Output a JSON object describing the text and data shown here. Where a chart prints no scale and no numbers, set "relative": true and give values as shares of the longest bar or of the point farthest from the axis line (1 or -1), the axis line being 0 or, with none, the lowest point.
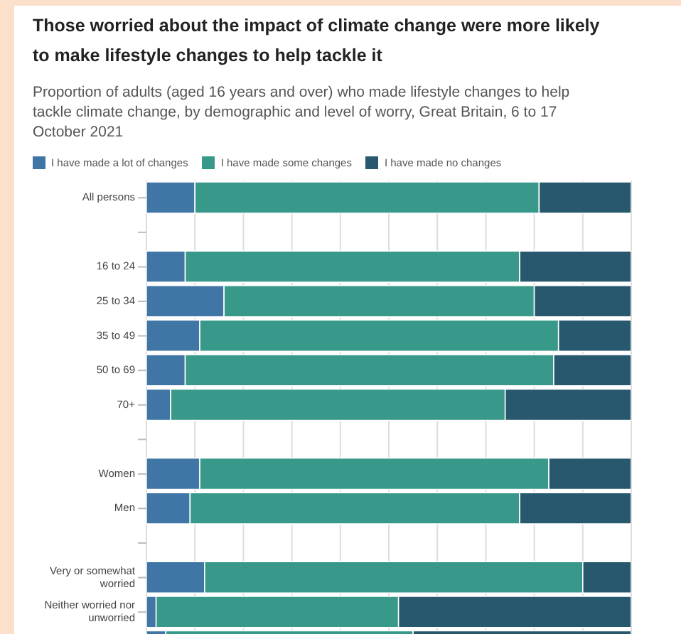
{
  "chart_data": {
    "type": "bar",
    "orientation": "horizontal",
    "stacked": true,
    "relative": true,
    "grid": "x",
    "legend": "top left",
    "title": "Those worried about the impact of climate change were more likely to make lifestyle changes to help tackle it",
    "subtitle": "Proportion of adults (aged 16 years and over) who made lifestyle changes to help tackle climate change, by demographic and level of worry, Great Britain, 6 to 17 October 2021",
    "categories": [
      "All persons",
      null,
      "16 to 24",
      "25 to 34",
      "35 to 49",
      "50 to 69",
      "70+",
      null,
      "Women",
      "Men",
      null,
      "Very or somewhat worried",
      "Neither worried nor unworried",
      null
    ],
    "series": [
      {
        "name": "I have made a lot of changes",
        "color": "#3f76a5",
        "values": [
          0.1,
          null,
          0.08,
          0.16,
          0.11,
          0.08,
          0.05,
          null,
          0.11,
          0.09,
          null,
          0.12,
          0.02,
          0.04
        ]
      },
      {
        "name": "I have made some changes",
        "color": "#38998a",
        "values": [
          0.71,
          null,
          0.69,
          0.64,
          0.74,
          0.76,
          0.69,
          null,
          0.72,
          0.68,
          null,
          0.78,
          0.5,
          0.51
        ]
      },
      {
        "name": "I have made no changes",
        "color": "#27586e",
        "values": [
          0.19,
          null,
          0.23,
          0.2,
          0.15,
          0.16,
          0.26,
          null,
          0.17,
          0.23,
          null,
          0.1,
          0.48,
          0.45
        ]
      }
    ]
  }
}
